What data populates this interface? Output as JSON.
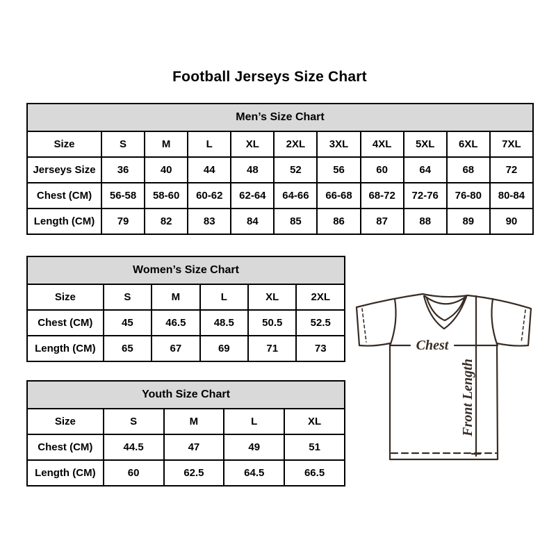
{
  "title": "Football Jerseys Size Chart",
  "tables": [
    {
      "name": "mens",
      "header": "Men’s Size Chart",
      "columns": [
        "Size",
        "S",
        "M",
        "L",
        "XL",
        "2XL",
        "3XL",
        "4XL",
        "5XL",
        "6XL",
        "7XL"
      ],
      "rows": [
        [
          "Jerseys Size",
          "36",
          "40",
          "44",
          "48",
          "52",
          "56",
          "60",
          "64",
          "68",
          "72"
        ],
        [
          "Chest (CM)",
          "56-58",
          "58-60",
          "60-62",
          "62-64",
          "64-66",
          "66-68",
          "68-72",
          "72-76",
          "76-80",
          "80-84"
        ],
        [
          "Length (CM)",
          "79",
          "82",
          "83",
          "84",
          "85",
          "86",
          "87",
          "88",
          "89",
          "90"
        ]
      ]
    },
    {
      "name": "womens",
      "header": "Women’s Size Chart",
      "columns": [
        "Size",
        "S",
        "M",
        "L",
        "XL",
        "2XL"
      ],
      "rows": [
        [
          "Chest (CM)",
          "45",
          "46.5",
          "48.5",
          "50.5",
          "52.5"
        ],
        [
          "Length (CM)",
          "65",
          "67",
          "69",
          "71",
          "73"
        ]
      ]
    },
    {
      "name": "youth",
      "header": "Youth Size Chart",
      "columns": [
        "Size",
        "S",
        "M",
        "L",
        "XL"
      ],
      "rows": [
        [
          "Chest (CM)",
          "44.5",
          "47",
          "49",
          "51"
        ],
        [
          "Length (CM)",
          "60",
          "62.5",
          "64.5",
          "66.5"
        ]
      ]
    }
  ],
  "jersey": {
    "chest_label": "Chest",
    "front_length_label": "Front Length"
  },
  "colors": {
    "table_header_bg": "#d9d9d9",
    "table_border": "#000000",
    "jersey_stroke": "#372c24"
  }
}
